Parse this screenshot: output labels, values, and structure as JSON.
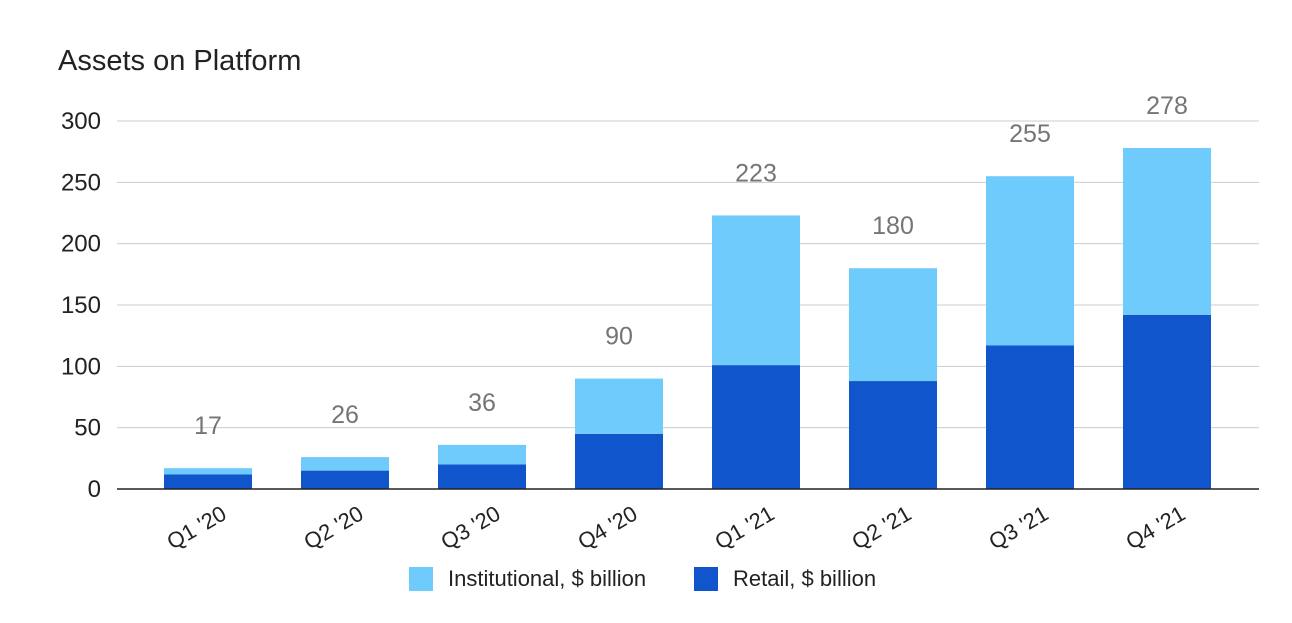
{
  "chart_data": {
    "type": "bar",
    "stacked": true,
    "title": "Assets on Platform",
    "xlabel": "",
    "ylabel": "",
    "ylim": [
      0,
      300
    ],
    "yticks": [
      0,
      50,
      100,
      150,
      200,
      250,
      300
    ],
    "grid": true,
    "legend_position": "bottom",
    "categories": [
      "Q1 '20",
      "Q2 '20",
      "Q3 '20",
      "Q4 '20",
      "Q1 '21",
      "Q2 '21",
      "Q3 '21",
      "Q4 '21"
    ],
    "series": [
      {
        "name": "Retail, $ billion",
        "color": "#1155cc",
        "values": [
          12,
          15,
          20,
          45,
          101,
          88,
          117,
          142
        ]
      },
      {
        "name": "Institutional, $ billion",
        "color": "#6fcbfc",
        "values": [
          5,
          11,
          16,
          45,
          122,
          92,
          138,
          136
        ]
      }
    ],
    "totals": [
      17,
      26,
      36,
      90,
      223,
      180,
      255,
      278
    ],
    "legend_order": [
      "Institutional, $ billion",
      "Retail, $ billion"
    ]
  }
}
